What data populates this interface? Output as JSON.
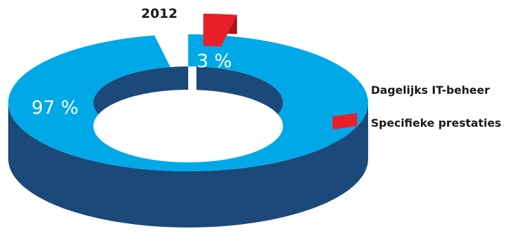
{
  "chart_data": {
    "type": "pie",
    "style": "3d-donut",
    "title": "2012",
    "slices": [
      {
        "label": "Dagelijks IT-beheer",
        "value": 97,
        "display": "97 %",
        "color": "#00a8e8",
        "side_color": "#1b4a7a"
      },
      {
        "label": "Specifieke prestaties",
        "value": 3,
        "display": "3 %",
        "color": "#e8202a",
        "side_color": "#b01419"
      }
    ],
    "legend_position": "right",
    "exploded_slice": "Specifieke prestaties"
  }
}
